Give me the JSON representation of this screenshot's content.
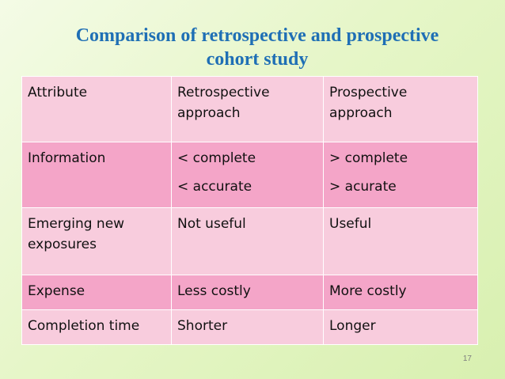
{
  "title": {
    "line1": "Comparison of retrospective and prospective",
    "line2": "cohort study"
  },
  "table": {
    "header": [
      "Attribute",
      "Retrospective approach",
      "Prospective approach"
    ],
    "rows": [
      {
        "attribute": "Information",
        "retrospective": [
          "< complete",
          "< accurate"
        ],
        "prospective": [
          "> complete",
          "> acurate"
        ]
      },
      {
        "attribute": "Emerging new exposures",
        "retrospective": [
          "Not useful"
        ],
        "prospective": [
          "Useful"
        ]
      },
      {
        "attribute": "Expense",
        "retrospective": [
          "Less costly"
        ],
        "prospective": [
          "More costly"
        ]
      },
      {
        "attribute": "Completion time",
        "retrospective": [
          "Shorter"
        ],
        "prospective": [
          "Longer"
        ]
      }
    ]
  },
  "page_number": "17",
  "colors": {
    "title": "#1f6fb5",
    "row_light": "#f8ccdd",
    "row_dark": "#f4a5c8",
    "background": "#e6f6c8"
  }
}
